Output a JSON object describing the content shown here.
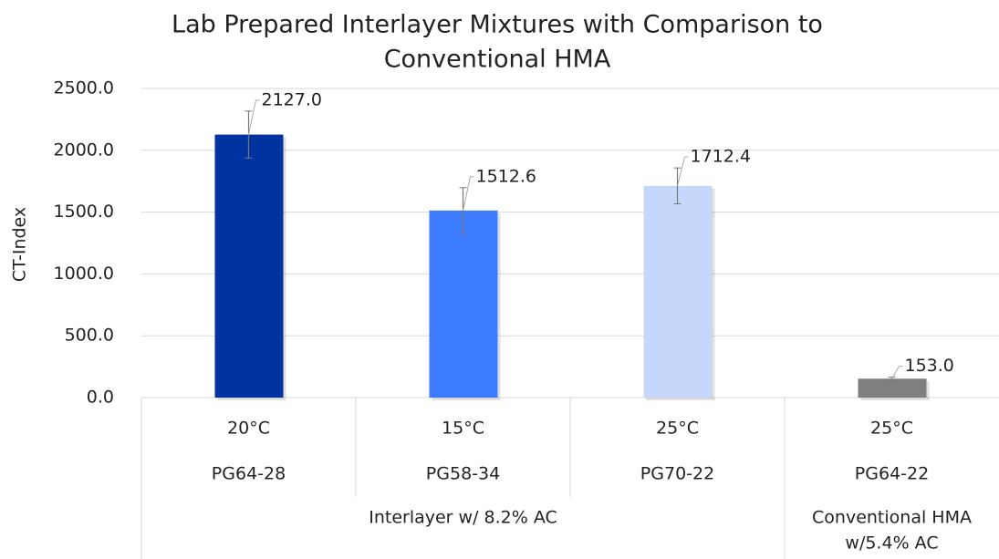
{
  "chart_data": {
    "type": "bar",
    "title": [
      "Lab Prepared Interlayer Mixtures with Comparison to",
      "Conventional HMA"
    ],
    "y_label": "CT-Index",
    "categories": [
      "20°C",
      "15°C",
      "25°C",
      "25°C"
    ],
    "subcategories": [
      "PG64-28",
      "PG58-34",
      "PG70-22",
      "PG64-22"
    ],
    "groups": [
      {
        "label": [
          "Interlayer w/ 8.2% AC"
        ],
        "categories": 3
      },
      {
        "label": [
          "Conventional HMA",
          "w/5.4% AC"
        ],
        "categories": 1
      }
    ],
    "values": [
      2127.0,
      1512.6,
      1712.4,
      153.0
    ],
    "value_labels": [
      "2127.0",
      "1512.6",
      "1712.4",
      "153.0"
    ],
    "errors": [
      190,
      185,
      145,
      12
    ],
    "colors": [
      "#0033a0",
      "#3d7bff",
      "#c5d7fb",
      "#7f7f7f"
    ],
    "ylim": [
      0,
      2500
    ],
    "yticks": [
      {
        "value": 0,
        "label": "0.0"
      },
      {
        "value": 500,
        "label": "500.0"
      },
      {
        "value": 1000,
        "label": "1000.0"
      },
      {
        "value": 1500,
        "label": "1500.0"
      },
      {
        "value": 2000,
        "label": "2000.0"
      },
      {
        "value": 2500,
        "label": "2500.0"
      }
    ],
    "grid": true
  }
}
